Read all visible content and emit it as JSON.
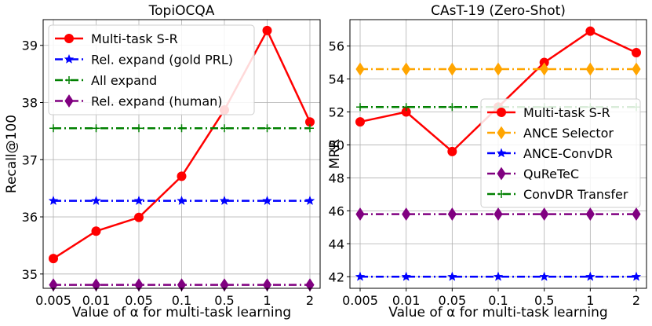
{
  "chart_data": [
    {
      "type": "line",
      "title": "TopiOCQA",
      "xlabel": "Value of α for multi-task learning",
      "ylabel": "Recall@100",
      "categories": [
        "0.005",
        "0.01",
        "0.05",
        "0.1",
        "0.5",
        "1",
        "2"
      ],
      "ylim": [
        34.75,
        39.45
      ],
      "yticks": [
        "35",
        "36",
        "37",
        "38",
        "39"
      ],
      "grid": true,
      "legend_position": "top-left",
      "series": [
        {
          "name": "Multi-task S-R",
          "values": [
            35.27,
            35.75,
            35.99,
            36.71,
            37.87,
            39.26,
            37.66
          ],
          "color": "#ff0000",
          "marker": "circle",
          "dash": "solid"
        },
        {
          "name": "Rel. expand (gold PRL)",
          "values": [
            36.28,
            36.28,
            36.28,
            36.28,
            36.28,
            36.28,
            36.28
          ],
          "color": "#0000ff",
          "marker": "star",
          "dash": "dashdot"
        },
        {
          "name": "All expand",
          "values": [
            37.55,
            37.55,
            37.55,
            37.55,
            37.55,
            37.55,
            37.55
          ],
          "color": "#008000",
          "marker": "plus",
          "dash": "dashdot"
        },
        {
          "name": "Rel. expand (human)",
          "values": [
            34.81,
            34.81,
            34.81,
            34.81,
            34.81,
            34.81,
            34.81
          ],
          "color": "#800080",
          "marker": "diamond",
          "dash": "dashdot"
        }
      ]
    },
    {
      "type": "line",
      "title": "CAsT-19 (Zero-Shot)",
      "xlabel": "Value of α for multi-task learning",
      "ylabel": "MRR",
      "categories": [
        "0.005",
        "0.01",
        "0.05",
        "0.1",
        "0.5",
        "1",
        "2"
      ],
      "ylim": [
        41.3,
        57.6
      ],
      "yticks": [
        "42",
        "44",
        "46",
        "48",
        "50",
        "52",
        "54",
        "56"
      ],
      "grid": true,
      "legend_position": "center-right",
      "series": [
        {
          "name": "Multi-task S-R",
          "values": [
            51.4,
            52.0,
            49.6,
            52.3,
            55.0,
            56.9,
            55.6
          ],
          "color": "#ff0000",
          "marker": "circle",
          "dash": "solid"
        },
        {
          "name": "ANCE Selector",
          "values": [
            54.6,
            54.6,
            54.6,
            54.6,
            54.6,
            54.6,
            54.6
          ],
          "color": "#ffa500",
          "marker": "diamond",
          "dash": "dashdot"
        },
        {
          "name": "ANCE-ConvDR",
          "values": [
            42.0,
            42.0,
            42.0,
            42.0,
            42.0,
            42.0,
            42.0
          ],
          "color": "#0000ff",
          "marker": "star",
          "dash": "dashdot"
        },
        {
          "name": "QuReTeC",
          "values": [
            45.8,
            45.8,
            45.8,
            45.8,
            45.8,
            45.8,
            45.8
          ],
          "color": "#800080",
          "marker": "diamond",
          "dash": "dashdot"
        },
        {
          "name": "ConvDR Transfer",
          "values": [
            52.3,
            52.3,
            52.3,
            52.3,
            52.3,
            52.3,
            52.3
          ],
          "color": "#008000",
          "marker": "plus",
          "dash": "dashdot"
        }
      ]
    }
  ]
}
